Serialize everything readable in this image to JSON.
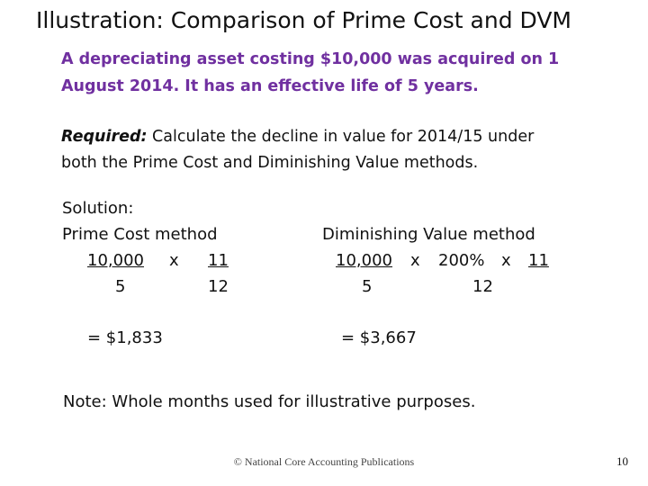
{
  "slide": {
    "title": "Illustration: Comparison of Prime Cost and DVM",
    "intro_line1": "A depreciating asset costing $10,000 was acquired on 1",
    "intro_line2": "August 2014. It has an effective life of 5 years.",
    "required_label": "Required:",
    "required_text1": " Calculate the decline in value for 2014/15 under",
    "required_text2": "both the Prime Cost and Diminishing Value methods.",
    "solution_label": "Solution:",
    "prime_cost": {
      "heading": "Prime Cost method",
      "num1": "10,000",
      "times": "x",
      "num2": "11",
      "den1": "5",
      "den2": "12",
      "result": "= $1,833"
    },
    "diminishing_value": {
      "heading": "Diminishing Value method",
      "num1": "10,000",
      "times1": "x",
      "rate": "200%",
      "times2": "x",
      "num3": "11",
      "den1": "5",
      "den2": "12",
      "result": "= $3,667"
    },
    "note": "Note: Whole months used for illustrative purposes.",
    "footer": "© National Core Accounting Publications",
    "page_number": "10"
  }
}
